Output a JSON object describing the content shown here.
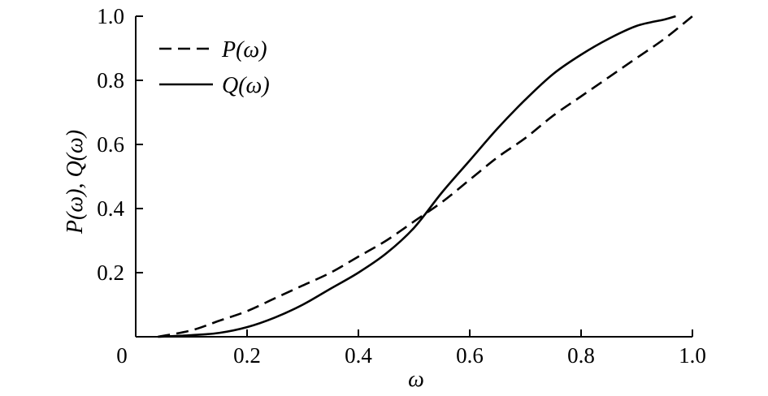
{
  "chart_data": {
    "type": "line",
    "title": "",
    "xlabel": "ω",
    "ylabel": "P(ω), Q(ω)",
    "xlim": [
      0,
      1.0
    ],
    "ylim": [
      0,
      1.0
    ],
    "x_ticks": [
      "0",
      "0.2",
      "0.4",
      "0.6",
      "0.8",
      "1.0"
    ],
    "y_ticks": [
      "0.2",
      "0.4",
      "0.6",
      "0.8",
      "1.0"
    ],
    "legend_position": "top-left",
    "grid": false,
    "series": [
      {
        "name": "P(ω)",
        "style": "dashed",
        "color": "#000000",
        "x": [
          0.04,
          0.1,
          0.15,
          0.2,
          0.25,
          0.3,
          0.35,
          0.4,
          0.45,
          0.5,
          0.55,
          0.6,
          0.65,
          0.7,
          0.75,
          0.8,
          0.85,
          0.9,
          0.95,
          1.0
        ],
        "y": [
          0.0,
          0.02,
          0.05,
          0.08,
          0.12,
          0.16,
          0.2,
          0.25,
          0.3,
          0.36,
          0.42,
          0.49,
          0.56,
          0.62,
          0.69,
          0.75,
          0.81,
          0.87,
          0.93,
          1.0
        ]
      },
      {
        "name": "Q(ω)",
        "style": "solid",
        "color": "#000000",
        "x": [
          0.04,
          0.1,
          0.15,
          0.2,
          0.25,
          0.3,
          0.35,
          0.4,
          0.45,
          0.5,
          0.55,
          0.6,
          0.65,
          0.7,
          0.75,
          0.8,
          0.85,
          0.9,
          0.95,
          0.97
        ],
        "y": [
          0.0,
          0.005,
          0.012,
          0.03,
          0.06,
          0.1,
          0.15,
          0.2,
          0.26,
          0.34,
          0.45,
          0.55,
          0.65,
          0.74,
          0.82,
          0.88,
          0.93,
          0.97,
          0.99,
          1.0
        ]
      }
    ]
  }
}
